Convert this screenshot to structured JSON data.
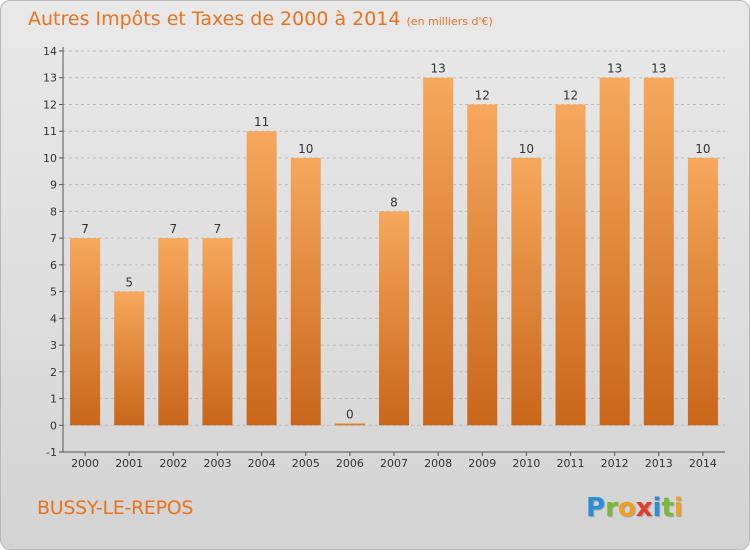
{
  "header": {
    "title": "Autres Impôts et Taxes de 2000 à 2014",
    "subtitle": "(en milliers d'€)"
  },
  "footer": {
    "city": "BUSSY-LE-REPOS",
    "brand_letters": [
      {
        "char": "P",
        "color": "#2c8fd6"
      },
      {
        "char": "r",
        "color": "#7ab83a"
      },
      {
        "char": "o",
        "color": "#f0a020"
      },
      {
        "char": "x",
        "color": "#e23a2b"
      },
      {
        "char": "i",
        "color": "#2c8fd6"
      },
      {
        "char": "t",
        "color": "#7ab83a"
      },
      {
        "char": "i",
        "color": "#f0a020"
      }
    ]
  },
  "colors": {
    "accent": "#e9731f",
    "bar_light": "#f6a85c",
    "bar_dark": "#c9661a",
    "grid": "#bdbdbd",
    "axis_text": "#333333"
  },
  "chart_data": {
    "type": "bar",
    "title": "Autres Impôts et Taxes de 2000 à 2014",
    "subtitle": "(en milliers d'€)",
    "categories": [
      "2000",
      "2001",
      "2002",
      "2003",
      "2004",
      "2005",
      "2006",
      "2007",
      "2008",
      "2009",
      "2010",
      "2011",
      "2012",
      "2013",
      "2014"
    ],
    "values": [
      7,
      5,
      7,
      7,
      11,
      10,
      0,
      8,
      13,
      12,
      10,
      12,
      13,
      13,
      10
    ],
    "ylim": [
      -1,
      14
    ],
    "yticks": [
      "-1",
      "0",
      "1",
      "2",
      "3",
      "4",
      "5",
      "6",
      "7",
      "8",
      "9",
      "10",
      "11",
      "12",
      "13",
      "14"
    ],
    "grid": true,
    "data_labels": true
  }
}
